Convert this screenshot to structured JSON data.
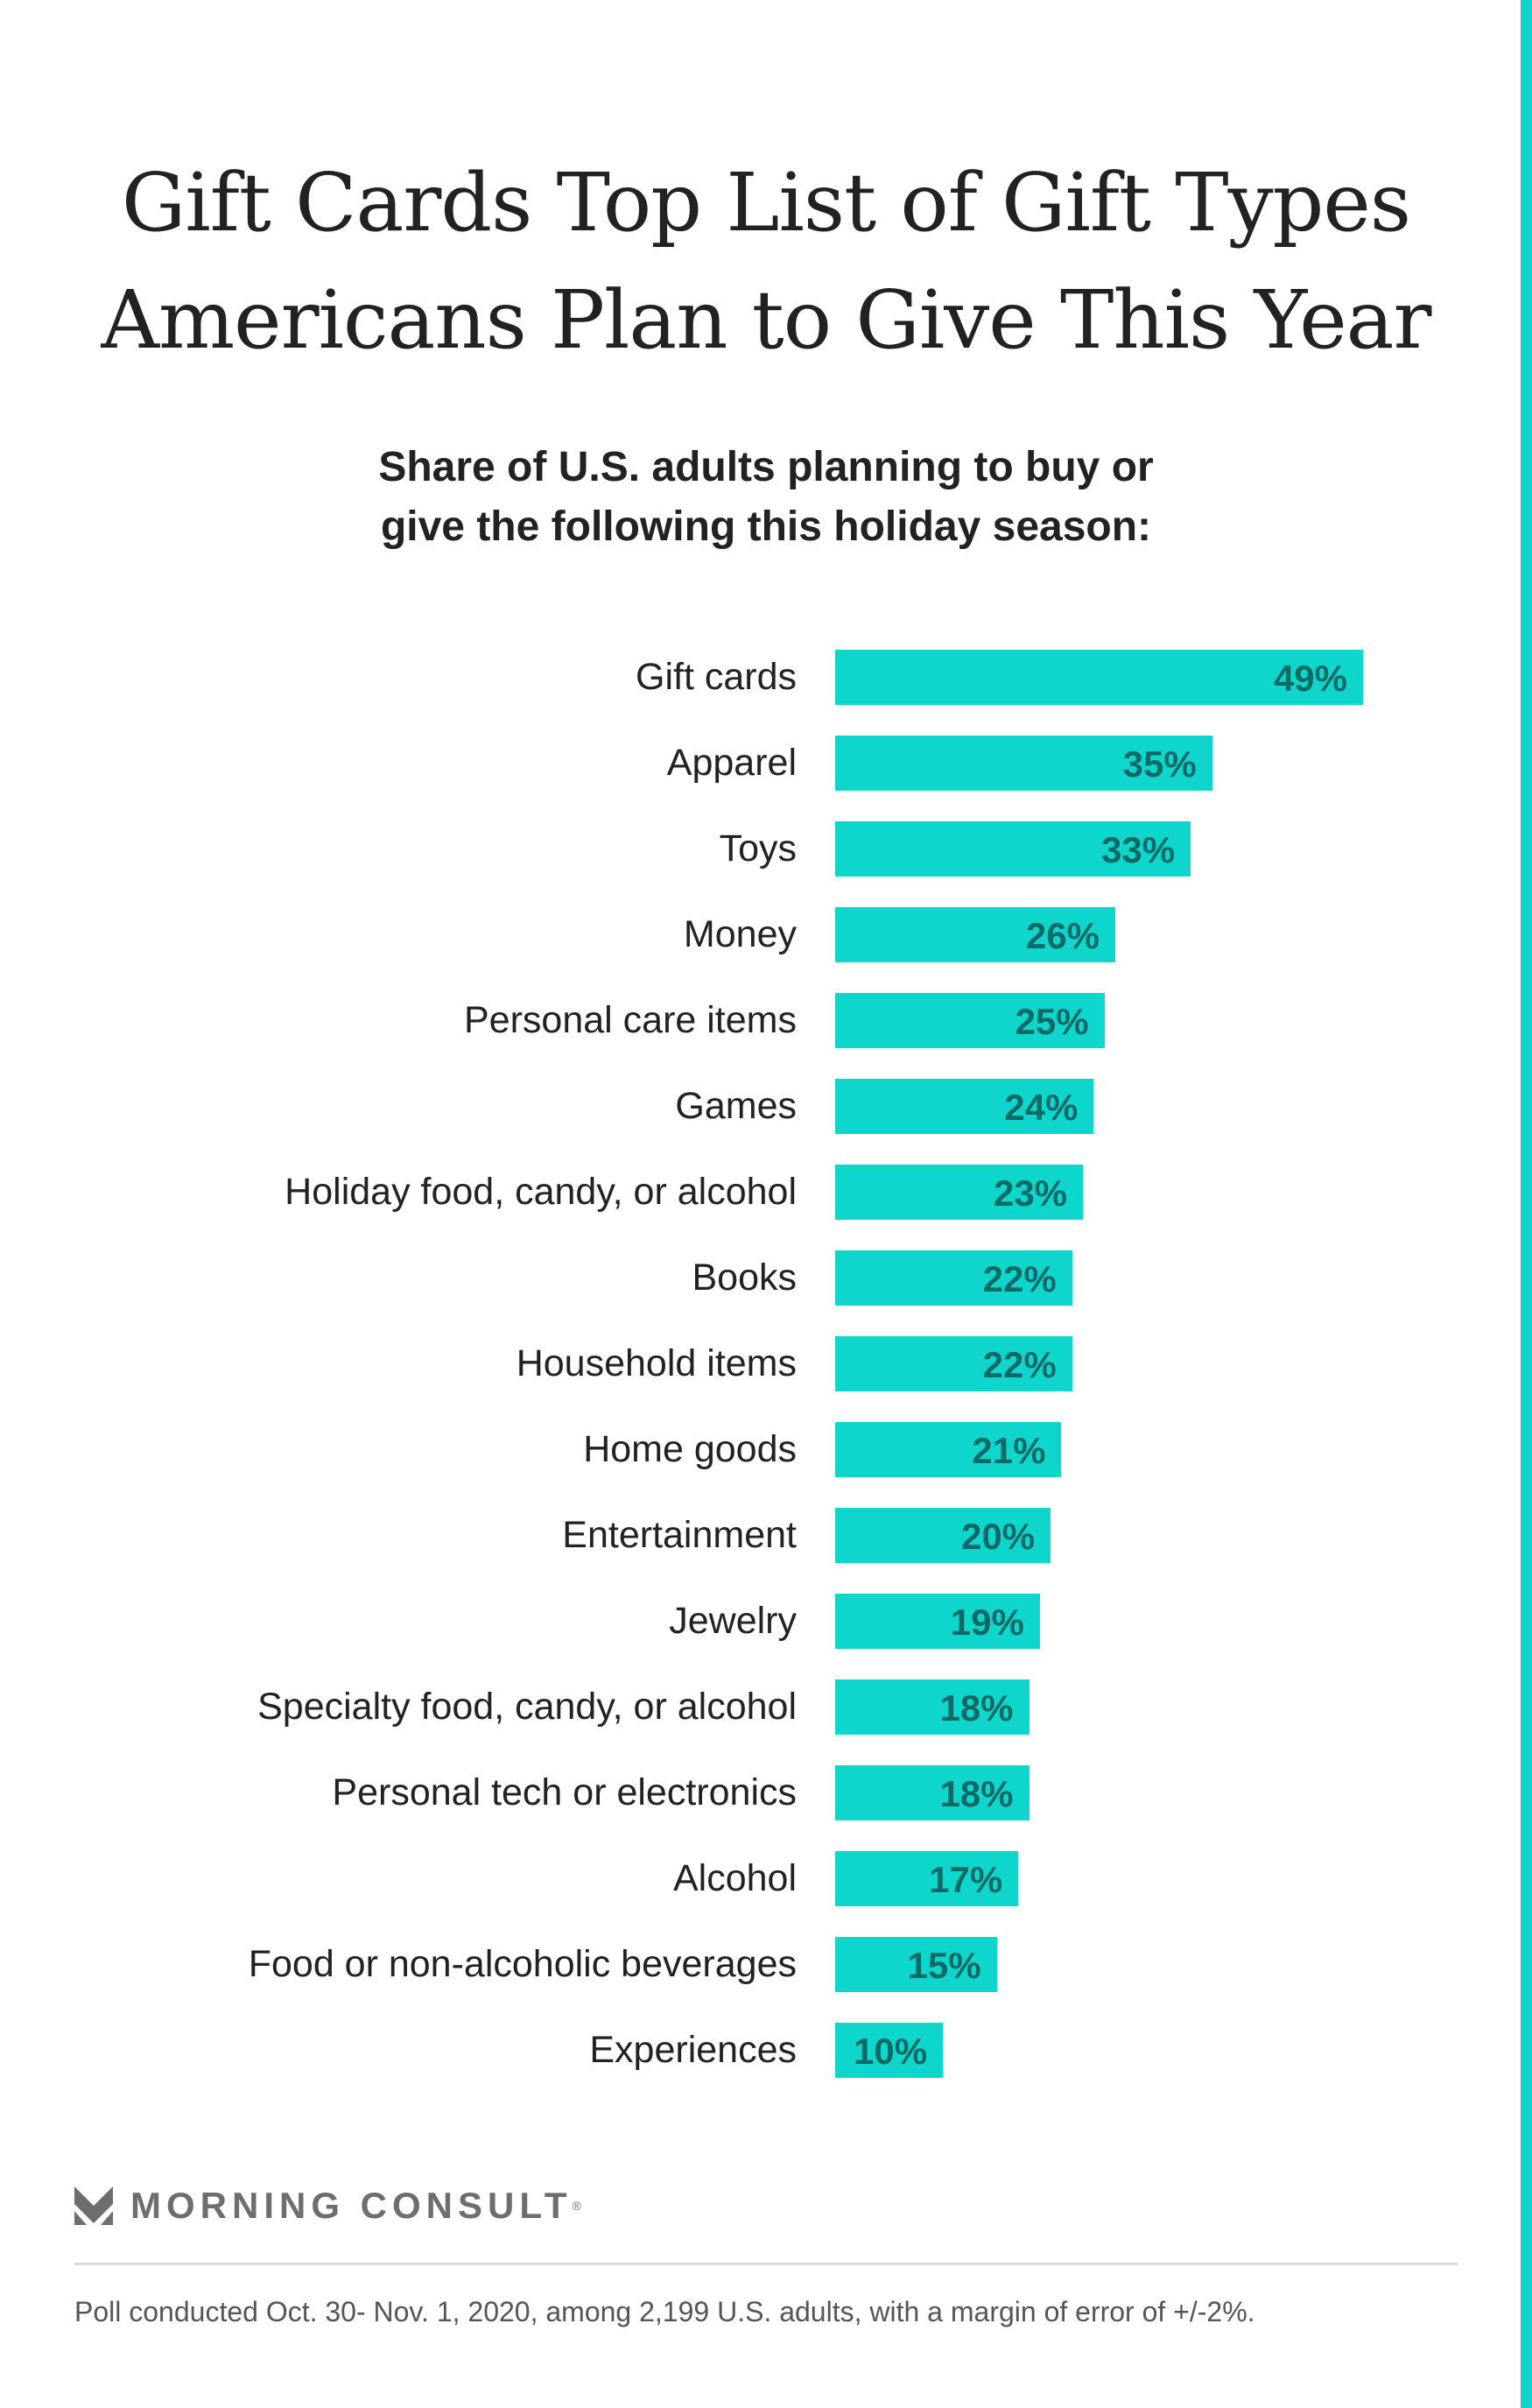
{
  "chart_data": {
    "type": "bar",
    "orientation": "horizontal",
    "title": "Gift Cards Top List of Gift Types Americans Plan to Give This Year",
    "title_lines": [
      "Gift Cards Top List of Gift Types",
      "Americans Plan to Give This Year"
    ],
    "subtitle_lines": [
      "Share of U.S. adults planning to buy or",
      "give the following this holiday season:"
    ],
    "categories": [
      "Gift cards",
      "Apparel",
      "Toys",
      "Money",
      "Personal care items",
      "Games",
      "Holiday food, candy, or alcohol",
      "Books",
      "Household items",
      "Home goods",
      "Entertainment",
      "Jewelry",
      "Specialty food, candy, or alcohol",
      "Personal tech or electronics",
      "Alcohol",
      "Food or non-alcoholic beverages",
      "Experiences"
    ],
    "values": [
      49,
      35,
      33,
      26,
      25,
      24,
      23,
      22,
      22,
      21,
      20,
      19,
      18,
      18,
      17,
      15,
      10
    ],
    "value_labels": [
      "49%",
      "35%",
      "33%",
      "26%",
      "25%",
      "24%",
      "23%",
      "22%",
      "22%",
      "21%",
      "20%",
      "19%",
      "18%",
      "18%",
      "17%",
      "15%",
      "10%"
    ],
    "xlabel": "",
    "ylabel": "",
    "xlim": [
      0,
      49
    ],
    "grid": false,
    "bar_color": "#0fd6cc",
    "label_color": "#0a6b66"
  },
  "branding": {
    "logo_text": "MORNING CONSULT",
    "registered": "®"
  },
  "footnote": "Poll conducted Oct. 30- Nov. 1, 2020, among 2,199 U.S. adults, with a margin of error of +/-2%."
}
